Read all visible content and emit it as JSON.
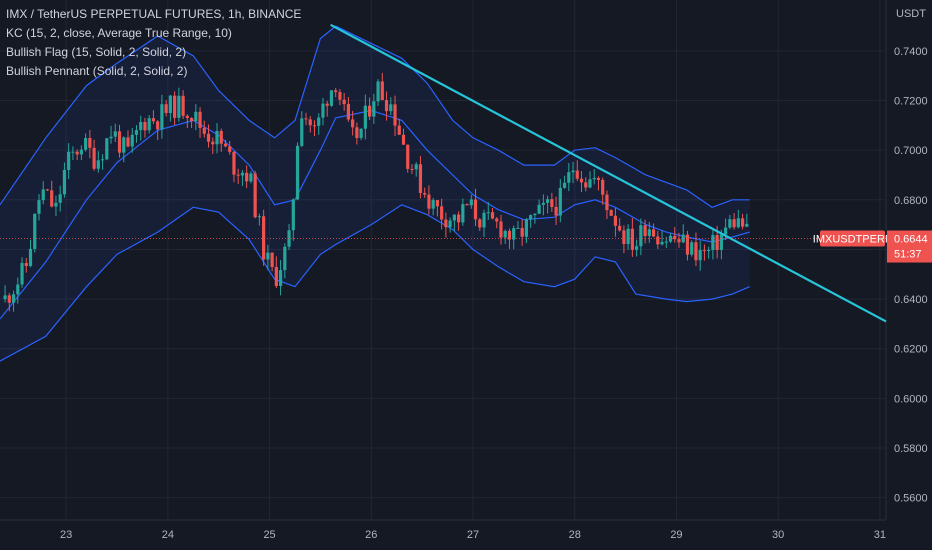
{
  "legend": {
    "title": "IMX / TetherUS PERPETUAL FUTURES, 1h, BINANCE",
    "indicators": [
      "KC (15, 2, close, Average True Range, 10)",
      "Bullish Flag (15, Solid, 2, Solid, 2)",
      "Bullish Pennant (Solid, 2, Solid, 2)"
    ]
  },
  "price_axis": {
    "unit": "USDT"
  },
  "last_price": {
    "symbol": "IMXUSDTPERP",
    "value": "0.6644",
    "countdown": "51:37"
  },
  "colors": {
    "background": "#151924",
    "up": "#26a69a",
    "down": "#ef5350",
    "channel": "#2962ff",
    "trendline": "#26c6da",
    "grid": "#232632",
    "text": "#b2b5be"
  },
  "chart_data": {
    "type": "candlestick",
    "title": "IMX / TetherUS PERPETUAL FUTURES, 1h, BINANCE",
    "xlabel": "",
    "ylabel": "USDT",
    "x_ticks": [
      "23",
      "24",
      "25",
      "26",
      "27",
      "28",
      "29",
      "30",
      "31"
    ],
    "y_ticks": [
      "0.7400",
      "0.7200",
      "0.7000",
      "0.6800",
      "0.6600",
      "0.6400",
      "0.6200",
      "0.6000",
      "0.5800",
      "0.5600"
    ],
    "y_range": [
      0.551,
      0.7605
    ],
    "x_range": [
      22.35,
      31.06
    ],
    "grid": true,
    "close_series": [
      [
        22.4,
        0.64
      ],
      [
        22.6,
        0.652
      ],
      [
        22.75,
        0.684
      ],
      [
        22.9,
        0.676
      ],
      [
        23.0,
        0.694
      ],
      [
        23.15,
        0.703
      ],
      [
        23.3,
        0.696
      ],
      [
        23.45,
        0.708
      ],
      [
        23.6,
        0.698
      ],
      [
        23.75,
        0.712
      ],
      [
        23.9,
        0.713
      ],
      [
        24.05,
        0.718
      ],
      [
        24.2,
        0.717
      ],
      [
        24.35,
        0.708
      ],
      [
        24.5,
        0.704
      ],
      [
        24.65,
        0.694
      ],
      [
        24.8,
        0.69
      ],
      [
        24.95,
        0.658
      ],
      [
        25.05,
        0.648
      ],
      [
        25.2,
        0.664
      ],
      [
        25.3,
        0.718
      ],
      [
        25.45,
        0.707
      ],
      [
        25.55,
        0.721
      ],
      [
        25.65,
        0.728
      ],
      [
        25.8,
        0.704
      ],
      [
        25.9,
        0.708
      ],
      [
        26.05,
        0.726
      ],
      [
        26.2,
        0.718
      ],
      [
        26.35,
        0.698
      ],
      [
        26.5,
        0.685
      ],
      [
        26.6,
        0.678
      ],
      [
        26.7,
        0.674
      ],
      [
        26.85,
        0.672
      ],
      [
        26.95,
        0.678
      ],
      [
        27.1,
        0.671
      ],
      [
        27.25,
        0.67
      ],
      [
        27.4,
        0.664
      ],
      [
        27.55,
        0.67
      ],
      [
        27.7,
        0.676
      ],
      [
        27.85,
        0.679
      ],
      [
        28.0,
        0.695
      ],
      [
        28.1,
        0.688
      ],
      [
        28.2,
        0.688
      ],
      [
        28.35,
        0.676
      ],
      [
        28.5,
        0.665
      ],
      [
        28.6,
        0.662
      ],
      [
        28.7,
        0.671
      ],
      [
        28.85,
        0.665
      ],
      [
        29.0,
        0.664
      ],
      [
        29.15,
        0.66
      ],
      [
        29.3,
        0.658
      ],
      [
        29.45,
        0.666
      ],
      [
        29.55,
        0.672
      ],
      [
        29.65,
        0.67
      ],
      [
        29.72,
        0.664
      ]
    ],
    "keltner_upper": [
      [
        22.35,
        0.678
      ],
      [
        22.8,
        0.705
      ],
      [
        23.2,
        0.726
      ],
      [
        23.5,
        0.735
      ],
      [
        23.9,
        0.746
      ],
      [
        24.25,
        0.738
      ],
      [
        24.5,
        0.724
      ],
      [
        24.8,
        0.712
      ],
      [
        25.05,
        0.705
      ],
      [
        25.25,
        0.712
      ],
      [
        25.5,
        0.745
      ],
      [
        25.65,
        0.75
      ],
      [
        26.0,
        0.743
      ],
      [
        26.3,
        0.737
      ],
      [
        26.55,
        0.727
      ],
      [
        26.8,
        0.712
      ],
      [
        27.0,
        0.705
      ],
      [
        27.25,
        0.7
      ],
      [
        27.5,
        0.694
      ],
      [
        27.8,
        0.694
      ],
      [
        28.0,
        0.7
      ],
      [
        28.2,
        0.701
      ],
      [
        28.4,
        0.697
      ],
      [
        28.7,
        0.69
      ],
      [
        28.9,
        0.687
      ],
      [
        29.1,
        0.684
      ],
      [
        29.35,
        0.677
      ],
      [
        29.55,
        0.68
      ],
      [
        29.72,
        0.68
      ]
    ],
    "keltner_middle": [
      [
        22.35,
        0.632
      ],
      [
        22.8,
        0.655
      ],
      [
        23.2,
        0.68
      ],
      [
        23.5,
        0.695
      ],
      [
        23.9,
        0.708
      ],
      [
        24.25,
        0.712
      ],
      [
        24.5,
        0.706
      ],
      [
        24.8,
        0.694
      ],
      [
        25.05,
        0.678
      ],
      [
        25.25,
        0.68
      ],
      [
        25.5,
        0.7
      ],
      [
        25.65,
        0.713
      ],
      [
        26.0,
        0.716
      ],
      [
        26.3,
        0.712
      ],
      [
        26.55,
        0.7
      ],
      [
        26.8,
        0.69
      ],
      [
        27.0,
        0.682
      ],
      [
        27.25,
        0.676
      ],
      [
        27.5,
        0.672
      ],
      [
        27.8,
        0.673
      ],
      [
        28.0,
        0.678
      ],
      [
        28.2,
        0.68
      ],
      [
        28.4,
        0.677
      ],
      [
        28.7,
        0.67
      ],
      [
        28.9,
        0.667
      ],
      [
        29.1,
        0.665
      ],
      [
        29.35,
        0.663
      ],
      [
        29.55,
        0.665
      ],
      [
        29.72,
        0.667
      ]
    ],
    "keltner_lower": [
      [
        22.35,
        0.615
      ],
      [
        22.8,
        0.625
      ],
      [
        23.2,
        0.645
      ],
      [
        23.5,
        0.658
      ],
      [
        23.9,
        0.667
      ],
      [
        24.25,
        0.677
      ],
      [
        24.5,
        0.675
      ],
      [
        24.8,
        0.664
      ],
      [
        25.05,
        0.648
      ],
      [
        25.25,
        0.645
      ],
      [
        25.5,
        0.658
      ],
      [
        25.65,
        0.662
      ],
      [
        26.0,
        0.67
      ],
      [
        26.3,
        0.678
      ],
      [
        26.55,
        0.674
      ],
      [
        26.8,
        0.668
      ],
      [
        27.0,
        0.66
      ],
      [
        27.25,
        0.653
      ],
      [
        27.5,
        0.647
      ],
      [
        27.8,
        0.645
      ],
      [
        28.0,
        0.648
      ],
      [
        28.2,
        0.657
      ],
      [
        28.4,
        0.655
      ],
      [
        28.6,
        0.642
      ],
      [
        28.9,
        0.64
      ],
      [
        29.1,
        0.639
      ],
      [
        29.35,
        0.64
      ],
      [
        29.55,
        0.642
      ],
      [
        29.72,
        0.645
      ]
    ],
    "trendline": {
      "start": [
        25.6,
        0.7505
      ],
      "end": [
        31.06,
        0.631
      ]
    }
  }
}
